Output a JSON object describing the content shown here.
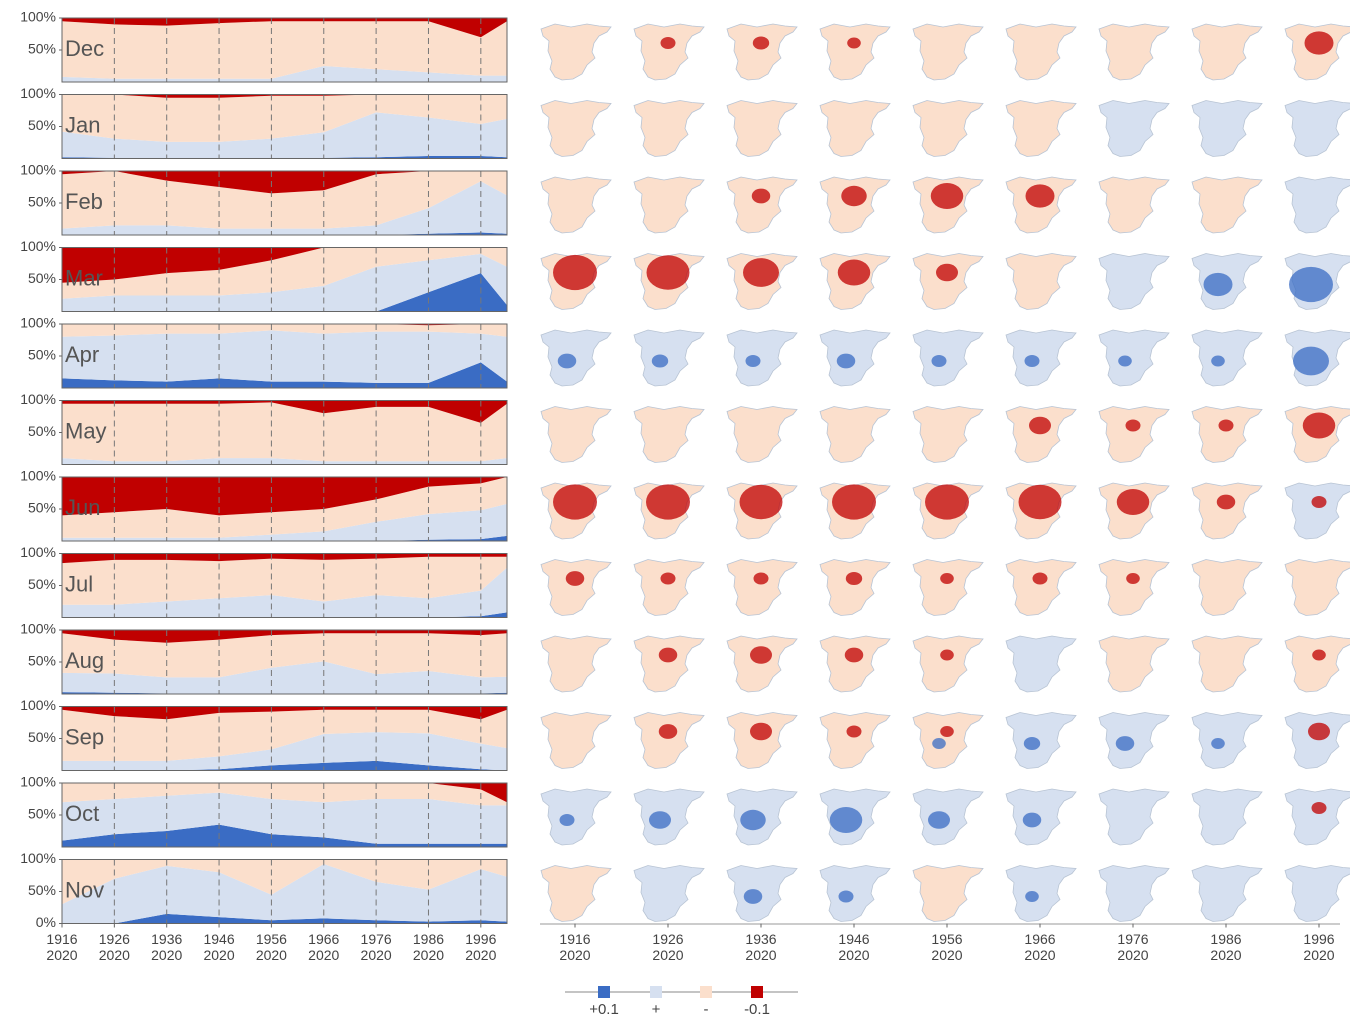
{
  "chart_data": {
    "type": "area",
    "x": [
      1916,
      1926,
      1936,
      1946,
      1956,
      1966,
      1976,
      1986,
      1996,
      2001
    ],
    "xlim": [
      1916,
      2001
    ],
    "xticks": [
      1916,
      1926,
      1936,
      1946,
      1956,
      1966,
      1976,
      1986,
      1996
    ],
    "xtick_sublabel": "2020",
    "ylim": [
      0,
      100
    ],
    "yticks": [
      {
        "value": 0,
        "label": "0%"
      },
      {
        "value": 50,
        "label": "50%"
      },
      {
        "value": 100,
        "label": "100%"
      }
    ],
    "series": [
      {
        "name": "+0.1",
        "color": "#3a6cc4"
      },
      {
        "name": "+",
        "color": "#d6e0f0"
      },
      {
        "name": "-",
        "color": "#fbdfcc"
      },
      {
        "name": "-0.1",
        "color": "#c00000"
      }
    ],
    "panels": [
      {
        "label": "Dec",
        "values": [
          [
            0,
            0,
            0,
            0,
            0,
            0,
            0,
            0,
            0,
            0
          ],
          [
            8,
            5,
            5,
            5,
            5,
            25,
            20,
            15,
            10,
            10
          ],
          [
            87,
            85,
            83,
            87,
            90,
            70,
            75,
            80,
            60,
            85
          ],
          [
            5,
            10,
            12,
            8,
            5,
            5,
            5,
            5,
            30,
            5
          ]
        ]
      },
      {
        "label": "Jan",
        "values": [
          [
            2,
            1,
            1,
            1,
            1,
            1,
            2,
            4,
            4,
            2
          ],
          [
            40,
            30,
            25,
            25,
            30,
            40,
            70,
            60,
            50,
            60
          ],
          [
            58,
            69,
            69,
            69,
            67,
            57,
            28,
            36,
            46,
            38
          ],
          [
            0,
            0,
            5,
            5,
            2,
            2,
            0,
            0,
            0,
            0
          ]
        ]
      },
      {
        "label": "Feb",
        "values": [
          [
            0,
            0,
            0,
            0,
            0,
            0,
            0,
            2,
            4,
            2
          ],
          [
            10,
            15,
            15,
            10,
            10,
            10,
            15,
            40,
            80,
            60
          ],
          [
            85,
            85,
            70,
            65,
            55,
            60,
            80,
            58,
            16,
            38
          ],
          [
            5,
            0,
            15,
            25,
            35,
            30,
            5,
            0,
            0,
            0
          ]
        ]
      },
      {
        "label": "Mar",
        "values": [
          [
            0,
            0,
            0,
            0,
            0,
            0,
            0,
            30,
            60,
            10
          ],
          [
            20,
            25,
            25,
            25,
            30,
            40,
            70,
            50,
            30,
            60
          ],
          [
            25,
            25,
            35,
            40,
            50,
            60,
            30,
            20,
            10,
            30
          ],
          [
            55,
            50,
            40,
            35,
            20,
            0,
            0,
            0,
            0,
            0
          ]
        ]
      },
      {
        "label": "Apr",
        "values": [
          [
            15,
            12,
            10,
            15,
            10,
            10,
            8,
            8,
            40,
            10
          ],
          [
            65,
            70,
            75,
            70,
            80,
            75,
            80,
            80,
            45,
            70
          ],
          [
            20,
            18,
            15,
            15,
            10,
            15,
            12,
            10,
            15,
            20
          ],
          [
            0,
            0,
            0,
            0,
            0,
            0,
            0,
            2,
            0,
            0
          ]
        ]
      },
      {
        "label": "May",
        "values": [
          [
            0,
            0,
            0,
            0,
            0,
            0,
            0,
            0,
            0,
            0
          ],
          [
            10,
            5,
            5,
            10,
            10,
            5,
            5,
            5,
            5,
            10
          ],
          [
            85,
            90,
            90,
            85,
            87,
            75,
            85,
            85,
            60,
            85
          ],
          [
            5,
            5,
            5,
            5,
            3,
            20,
            10,
            10,
            35,
            5
          ]
        ]
      },
      {
        "label": "Jun",
        "values": [
          [
            0,
            0,
            0,
            0,
            0,
            0,
            0,
            2,
            3,
            8
          ],
          [
            5,
            5,
            5,
            5,
            10,
            15,
            30,
            40,
            45,
            50
          ],
          [
            35,
            40,
            45,
            35,
            35,
            35,
            35,
            43,
            42,
            42
          ],
          [
            60,
            55,
            50,
            60,
            55,
            50,
            35,
            15,
            10,
            0
          ]
        ]
      },
      {
        "label": "Jul",
        "values": [
          [
            0,
            0,
            0,
            0,
            0,
            0,
            0,
            0,
            2,
            8
          ],
          [
            20,
            20,
            25,
            30,
            35,
            25,
            35,
            30,
            40,
            70
          ],
          [
            65,
            70,
            65,
            58,
            57,
            65,
            57,
            65,
            53,
            17
          ],
          [
            15,
            10,
            10,
            12,
            8,
            10,
            8,
            5,
            5,
            5
          ]
        ]
      },
      {
        "label": "Aug",
        "values": [
          [
            3,
            2,
            1,
            1,
            1,
            1,
            1,
            1,
            1,
            2
          ],
          [
            30,
            30,
            25,
            25,
            40,
            50,
            30,
            35,
            25,
            25
          ],
          [
            62,
            53,
            54,
            59,
            51,
            44,
            64,
            59,
            66,
            68
          ],
          [
            5,
            15,
            20,
            15,
            8,
            5,
            5,
            5,
            8,
            5
          ]
        ]
      },
      {
        "label": "Sep",
        "values": [
          [
            0,
            0,
            0,
            2,
            8,
            12,
            15,
            8,
            2,
            0
          ],
          [
            15,
            15,
            15,
            20,
            25,
            45,
            45,
            50,
            40,
            35
          ],
          [
            80,
            70,
            65,
            68,
            59,
            38,
            35,
            37,
            38,
            60
          ],
          [
            5,
            15,
            20,
            10,
            8,
            5,
            5,
            5,
            20,
            5
          ]
        ]
      },
      {
        "label": "Oct",
        "values": [
          [
            10,
            20,
            25,
            35,
            20,
            15,
            5,
            5,
            5,
            5
          ],
          [
            60,
            55,
            55,
            50,
            55,
            55,
            70,
            70,
            60,
            60
          ],
          [
            30,
            25,
            20,
            15,
            25,
            30,
            25,
            25,
            25,
            5
          ],
          [
            0,
            0,
            0,
            0,
            0,
            0,
            0,
            0,
            10,
            30
          ]
        ]
      },
      {
        "label": "Nov",
        "values": [
          [
            0,
            0,
            15,
            10,
            5,
            8,
            5,
            3,
            5,
            3
          ],
          [
            30,
            70,
            75,
            70,
            40,
            85,
            60,
            50,
            80,
            70
          ],
          [
            70,
            30,
            10,
            20,
            55,
            7,
            35,
            47,
            15,
            27
          ],
          [
            0,
            0,
            0,
            0,
            0,
            0,
            0,
            0,
            0,
            0
          ]
        ]
      }
    ]
  }
}
